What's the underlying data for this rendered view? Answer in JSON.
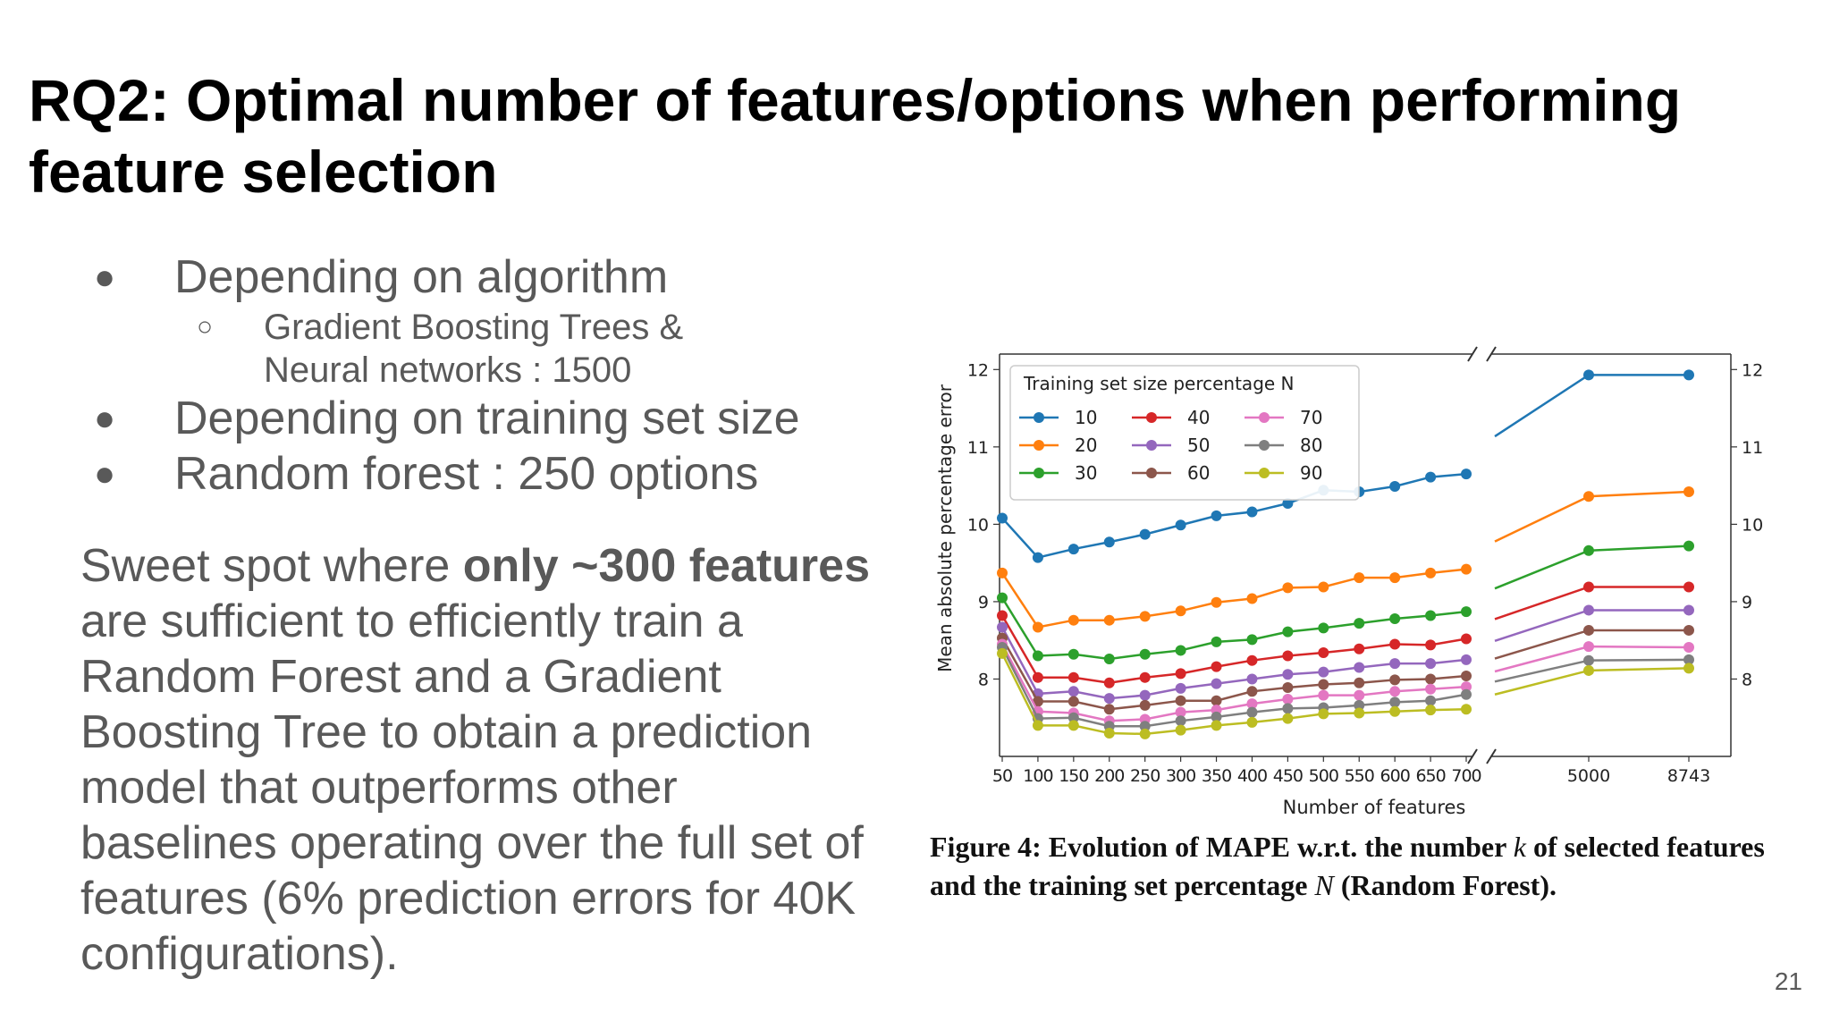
{
  "slide": {
    "title": "RQ2: Optimal number of features/options when performing feature selection",
    "bullets": [
      {
        "text": "Depending on algorithm",
        "sub": [
          "Gradient Boosting Trees &",
          "Neural networks : 1500"
        ]
      },
      {
        "text": "Depending on training set size",
        "sub": []
      },
      {
        "text": "Random forest : 250 options",
        "sub": []
      }
    ],
    "paragraph": {
      "pre": "Sweet spot where ",
      "bold": "only ~300 features",
      "post": " are sufficient to efficiently train a Random Forest and a Gradient Boosting Tree to obtain a prediction model that outperforms other baselines operating over the full set of features (6% prediction errors for 40K configurations)."
    },
    "caption": {
      "part1": "Figure 4: Evolution of MAPE w.r.t. the number ",
      "var1": "k",
      "part2": " of selected features and the training set percentage ",
      "var2": "N",
      "part3": " (Random Forest)."
    },
    "page_number": "21"
  },
  "chart_data": {
    "type": "line",
    "xlabel": "Number of features",
    "ylabel": "Mean absolute percentage error",
    "x_left": [
      50,
      100,
      150,
      200,
      250,
      300,
      350,
      400,
      450,
      500,
      550,
      600,
      650,
      700
    ],
    "x_right": [
      5000,
      8743
    ],
    "ylim": [
      7.0,
      12.2
    ],
    "yticks": [
      8,
      9,
      10,
      11,
      12
    ],
    "broken_x_axis": true,
    "legend_title": "Training set size percentage N",
    "legend_position": "top-left",
    "series": [
      {
        "name": "10",
        "color": "#1f77b4",
        "values": [
          10.08,
          9.57,
          9.68,
          9.77,
          9.87,
          9.99,
          10.11,
          10.16,
          10.27,
          10.44,
          10.42,
          10.49,
          10.61,
          10.65,
          11.93,
          11.93
        ]
      },
      {
        "name": "20",
        "color": "#ff7f0e",
        "values": [
          9.37,
          8.67,
          8.76,
          8.76,
          8.81,
          8.88,
          8.99,
          9.04,
          9.18,
          9.19,
          9.31,
          9.31,
          9.37,
          9.42,
          10.36,
          10.42
        ]
      },
      {
        "name": "30",
        "color": "#2ca02c",
        "values": [
          9.05,
          8.3,
          8.32,
          8.26,
          8.32,
          8.37,
          8.48,
          8.51,
          8.61,
          8.66,
          8.72,
          8.78,
          8.82,
          8.87,
          9.66,
          9.72
        ]
      },
      {
        "name": "40",
        "color": "#d62728",
        "values": [
          8.82,
          8.02,
          8.02,
          7.95,
          8.02,
          8.07,
          8.16,
          8.24,
          8.3,
          8.34,
          8.39,
          8.45,
          8.44,
          8.52,
          9.19,
          9.19
        ]
      },
      {
        "name": "50",
        "color": "#9467bd",
        "values": [
          8.67,
          7.81,
          7.84,
          7.75,
          7.79,
          7.88,
          7.94,
          8.0,
          8.06,
          8.09,
          8.15,
          8.2,
          8.2,
          8.25,
          8.89,
          8.89
        ]
      },
      {
        "name": "60",
        "color": "#8c564b",
        "values": [
          8.53,
          7.71,
          7.71,
          7.61,
          7.66,
          7.72,
          7.72,
          7.84,
          7.89,
          7.93,
          7.95,
          7.99,
          8.0,
          8.04,
          8.63,
          8.63
        ]
      },
      {
        "name": "70",
        "color": "#e377c2",
        "values": [
          8.45,
          7.58,
          7.56,
          7.46,
          7.48,
          7.57,
          7.6,
          7.68,
          7.74,
          7.79,
          7.79,
          7.84,
          7.87,
          7.9,
          8.42,
          8.41
        ]
      },
      {
        "name": "80",
        "color": "#7f7f7f",
        "values": [
          8.41,
          7.49,
          7.5,
          7.39,
          7.39,
          7.46,
          7.51,
          7.57,
          7.62,
          7.63,
          7.66,
          7.7,
          7.72,
          7.8,
          8.24,
          8.25
        ]
      },
      {
        "name": "90",
        "color": "#bcbd22",
        "values": [
          8.33,
          7.4,
          7.4,
          7.3,
          7.29,
          7.34,
          7.4,
          7.44,
          7.49,
          7.55,
          7.56,
          7.58,
          7.6,
          7.61,
          8.11,
          8.14
        ]
      }
    ]
  }
}
